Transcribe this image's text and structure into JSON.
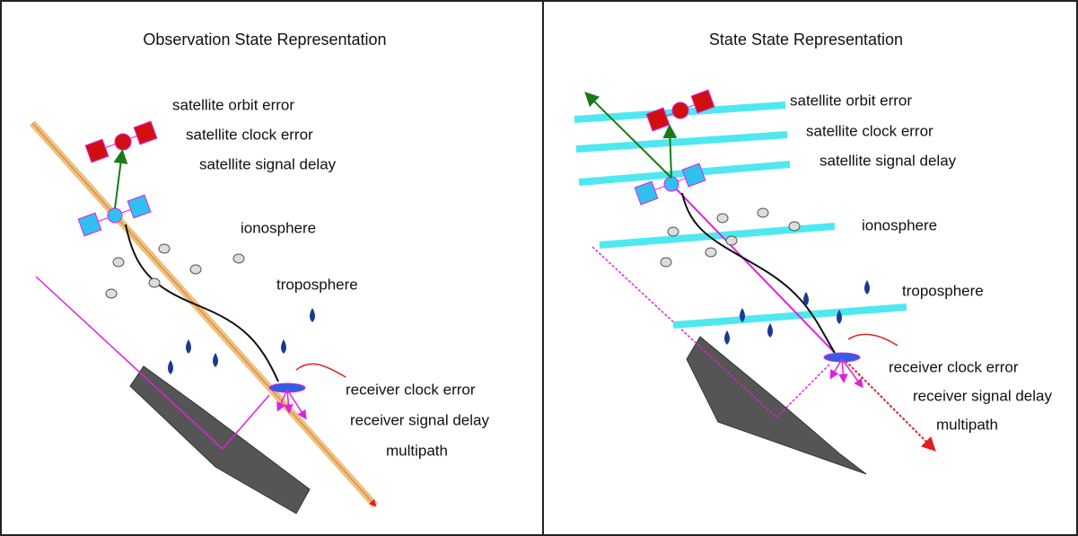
{
  "panels": [
    {
      "title": "Observation State Representation",
      "labels": [
        "satellite orbit error",
        "satellite clock error",
        "satellite signal delay",
        "ionosphere",
        "troposphere",
        "receiver clock error",
        "receiver signal delay",
        "multipath"
      ]
    },
    {
      "title": "State State Representation",
      "labels": [
        "satellite orbit error",
        "satellite clock error",
        "satellite signal delay",
        "ionosphere",
        "troposphere",
        "receiver clock error",
        "receiver signal delay",
        "multipath"
      ]
    }
  ]
}
